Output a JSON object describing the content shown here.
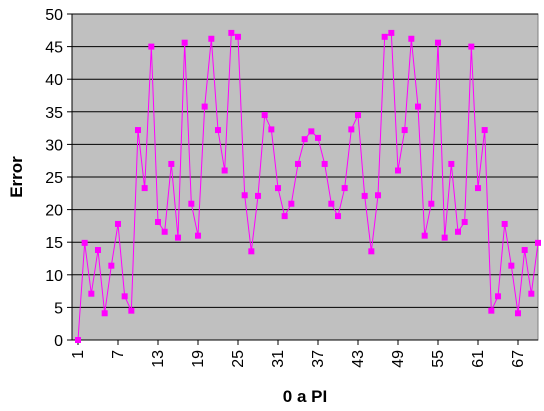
{
  "chart_data": {
    "type": "line",
    "xlabel": "0 a PI",
    "ylabel": "Error",
    "ylim": [
      0,
      50
    ],
    "ytick_step": 5,
    "grid": "horizontal",
    "legend": "none",
    "x": [
      1,
      2,
      3,
      4,
      5,
      6,
      7,
      8,
      9,
      10,
      11,
      12,
      13,
      14,
      15,
      16,
      17,
      18,
      19,
      20,
      21,
      22,
      23,
      24,
      25,
      26,
      27,
      28,
      29,
      30,
      31,
      32,
      33,
      34,
      35,
      36,
      37,
      38,
      39,
      40,
      41,
      42,
      43,
      44,
      45,
      46,
      47,
      48,
      49,
      50,
      51,
      52,
      53,
      54,
      55,
      56,
      57,
      58,
      59,
      60,
      61,
      62,
      63,
      64,
      65,
      66,
      67,
      68,
      69,
      70
    ],
    "xtick_labels": [
      "1",
      "7",
      "13",
      "19",
      "25",
      "31",
      "37",
      "43",
      "49",
      "55",
      "61",
      "67"
    ],
    "series": [
      {
        "color": "#ff00ff",
        "values": [
          0,
          14.9,
          7.1,
          13.8,
          4.1,
          11.4,
          17.8,
          6.7,
          4.5,
          32.2,
          23.3,
          45,
          18.1,
          16.6,
          27,
          15.7,
          45.6,
          20.9,
          16,
          35.8,
          46.2,
          32.2,
          26,
          47.1,
          46.5,
          22.2,
          13.6,
          22.1,
          34.5,
          32.3,
          23.3,
          19,
          20.9,
          27,
          30.8,
          32,
          31,
          27,
          20.9,
          19,
          23.3,
          32.3,
          34.5,
          22.1,
          13.6,
          22.2,
          46.5,
          47.1,
          26,
          32.2,
          46.2,
          35.8,
          16,
          20.9,
          45.6,
          15.7,
          27,
          16.6,
          18.1,
          45,
          23.3,
          32.2,
          4.5,
          6.7,
          17.8,
          11.4,
          4.1,
          13.8,
          7.1,
          14.9
        ]
      }
    ]
  },
  "colors": {
    "plot_background": "#c0c0c0",
    "gridline": "#000000",
    "series": "#ff00ff"
  }
}
